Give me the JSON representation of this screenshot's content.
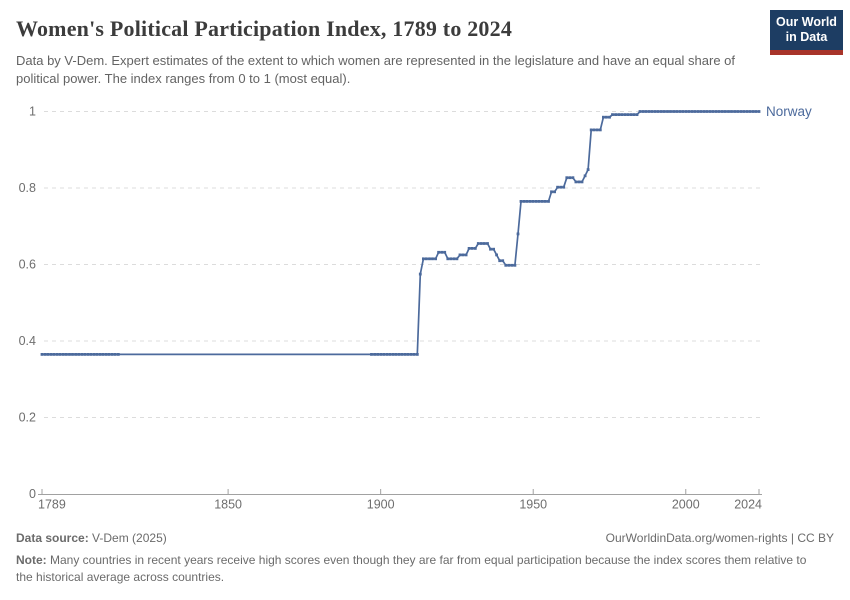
{
  "header": {
    "title": "Women's Political Participation Index, 1789 to 2024",
    "subtitle": "Data by V-Dem. Expert estimates of the extent to which women are represented in the legislature and have an equal share of political power. The index ranges from 0 to 1 (most equal).",
    "logo": {
      "line1": "Our World",
      "line2": "in Data"
    }
  },
  "colors": {
    "series_blue": "#4C6A9C",
    "logo_navy": "#1d3d63",
    "logo_red": "#a8342a",
    "grid": "#dcdcdc",
    "axis": "#a1a1a1",
    "tick_text": "#6e6e6e"
  },
  "chart_data": {
    "type": "line",
    "title": "Women's Political Participation Index, 1789 to 2024",
    "xlabel": "",
    "ylabel": "",
    "xlim": [
      1789,
      2024
    ],
    "ylim": [
      0,
      1
    ],
    "grid": "horizontal-dashed",
    "legend_position": "end-of-line-label",
    "x_ticks": [
      {
        "v": 1789,
        "label": "1789"
      },
      {
        "v": 1850,
        "label": "1850"
      },
      {
        "v": 1900,
        "label": "1900"
      },
      {
        "v": 1950,
        "label": "1950"
      },
      {
        "v": 2000,
        "label": "2000"
      },
      {
        "v": 2024,
        "label": "2024"
      }
    ],
    "y_ticks": [
      {
        "v": 0,
        "label": "0"
      },
      {
        "v": 0.2,
        "label": "0.2"
      },
      {
        "v": 0.4,
        "label": "0.4"
      },
      {
        "v": 0.6,
        "label": "0.6"
      },
      {
        "v": 0.8,
        "label": "0.8"
      },
      {
        "v": 1,
        "label": "1"
      }
    ],
    "series": [
      {
        "name": "Norway",
        "color": "#4C6A9C",
        "segments_format": "[startYear, endYear, indexValue]",
        "segments": [
          [
            1789,
            1912,
            0.365
          ],
          [
            1913,
            1913,
            0.575
          ],
          [
            1914,
            1918,
            0.615
          ],
          [
            1919,
            1921,
            0.632
          ],
          [
            1922,
            1925,
            0.615
          ],
          [
            1926,
            1928,
            0.625
          ],
          [
            1929,
            1931,
            0.642
          ],
          [
            1932,
            1935,
            0.655
          ],
          [
            1936,
            1937,
            0.64
          ],
          [
            1938,
            1938,
            0.625
          ],
          [
            1939,
            1940,
            0.61
          ],
          [
            1941,
            1944,
            0.598
          ],
          [
            1945,
            1945,
            0.68
          ],
          [
            1946,
            1955,
            0.765
          ],
          [
            1956,
            1957,
            0.79
          ],
          [
            1958,
            1960,
            0.802
          ],
          [
            1961,
            1963,
            0.827
          ],
          [
            1964,
            1966,
            0.816
          ],
          [
            1967,
            1967,
            0.832
          ],
          [
            1968,
            1968,
            0.848
          ],
          [
            1969,
            1972,
            0.952
          ],
          [
            1973,
            1975,
            0.985
          ],
          [
            1976,
            1984,
            0.992
          ],
          [
            1985,
            2024,
            1.0
          ]
        ],
        "marker_year_ranges": [
          [
            1789,
            1814
          ],
          [
            1897,
            2024
          ]
        ]
      }
    ]
  },
  "footer": {
    "datasource_label": "Data source:",
    "datasource_value": " V-Dem (2025)",
    "link": "OurWorldinData.org/women-rights",
    "separator": " | ",
    "license": "CC BY",
    "note_label": "Note:",
    "note_text": " Many countries in recent years receive high scores even though they are far from equal participation because the index scores them relative to the historical average across countries."
  }
}
